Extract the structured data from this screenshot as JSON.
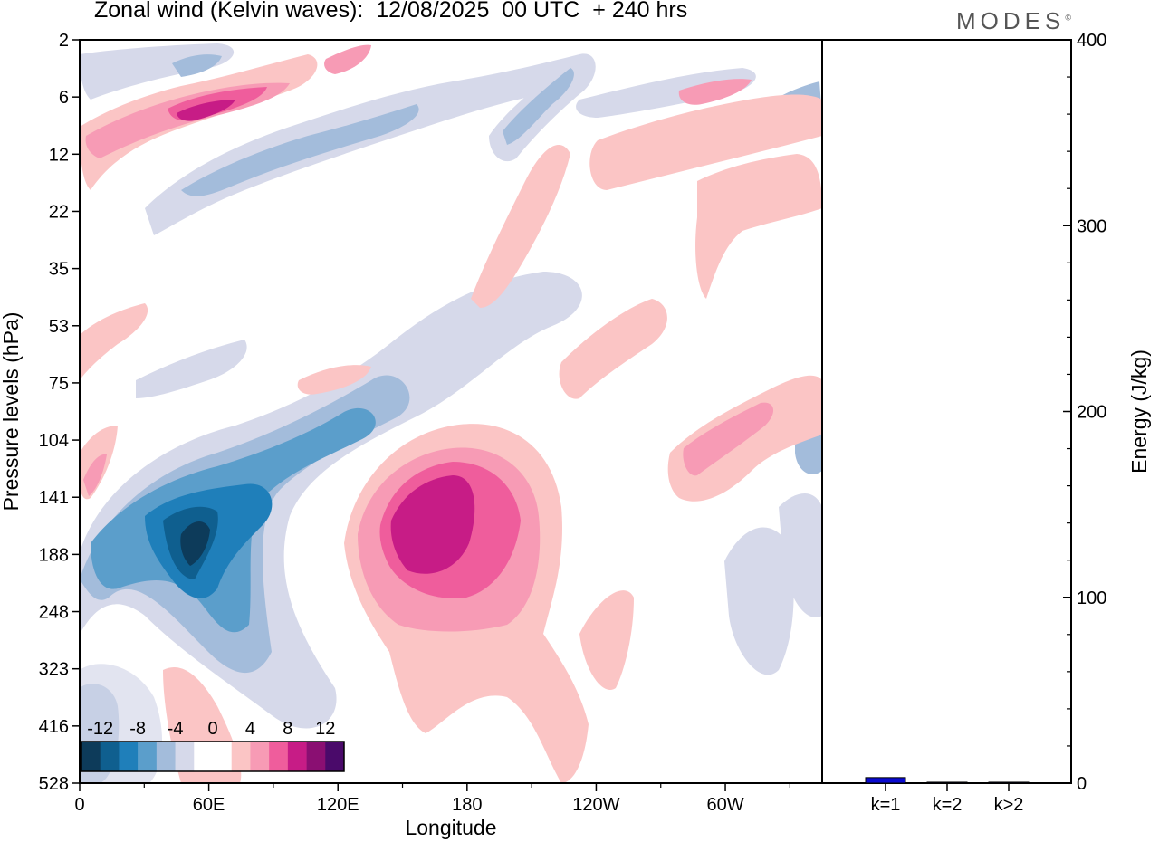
{
  "title": "Zonal wind (Kelvin waves):  12/08/2025  00 UTC  + 240 hrs",
  "brand": "MODES",
  "brand_mark": "©",
  "chart_data": [
    {
      "type": "heatmap",
      "title": "Zonal wind (Kelvin waves):  12/08/2025  00 UTC  + 240 hrs",
      "xlabel": "Longitude",
      "ylabel": "Pressure levels (hPa)",
      "x_ticks": [
        "0",
        "60E",
        "120E",
        "180",
        "120W",
        "60W"
      ],
      "x_tick_values": [
        0,
        60,
        120,
        180,
        240,
        300
      ],
      "xlim": [
        0,
        345
      ],
      "y_ticks": [
        "2",
        "6",
        "12",
        "22",
        "35",
        "53",
        "75",
        "104",
        "141",
        "188",
        "248",
        "323",
        "416",
        "528"
      ],
      "colorbar": {
        "labels": [
          "-12",
          "-8",
          "-4",
          "0",
          "4",
          "8",
          "12"
        ],
        "levels": [
          -14,
          -12,
          -10,
          -8,
          -6,
          -4,
          -2,
          0,
          2,
          4,
          6,
          8,
          10,
          12,
          14
        ],
        "colors": [
          "#0d3b5a",
          "#0f5f8f",
          "#1f7fba",
          "#5b9ecb",
          "#a3bcdb",
          "#d6d9ea",
          "#ffffff",
          "#ffffff",
          "#fbc5c5",
          "#f79bb5",
          "#ef5d9c",
          "#c71c86",
          "#8a0f72",
          "#4a0a6a"
        ]
      },
      "features": [
        {
          "name": "easterly core",
          "lon": 50,
          "level": 160,
          "value": -14
        },
        {
          "name": "easterly core",
          "lon": 60,
          "level": 130,
          "value": -12
        },
        {
          "name": "westerly core",
          "lon": 165,
          "level": 150,
          "value": 12
        },
        {
          "name": "westerly core",
          "lon": 180,
          "level": 140,
          "value": 12
        },
        {
          "name": "upper westerly",
          "lon": 55,
          "level": 6,
          "value": 10
        },
        {
          "name": "upper easterly",
          "lon": 60,
          "level": 12,
          "value": -6
        },
        {
          "name": "westerly",
          "lon": 285,
          "level": 120,
          "value": 8
        }
      ]
    },
    {
      "type": "bar",
      "categories": [
        "k=1",
        "k=2",
        "k>2"
      ],
      "values": [
        3,
        0.5,
        0.5
      ],
      "ylabel": "Energy (J/kg)",
      "ylim": [
        0,
        400
      ],
      "y_ticks": [
        "0",
        "100",
        "200",
        "300",
        "400"
      ],
      "color": "#0a0ad0"
    }
  ]
}
